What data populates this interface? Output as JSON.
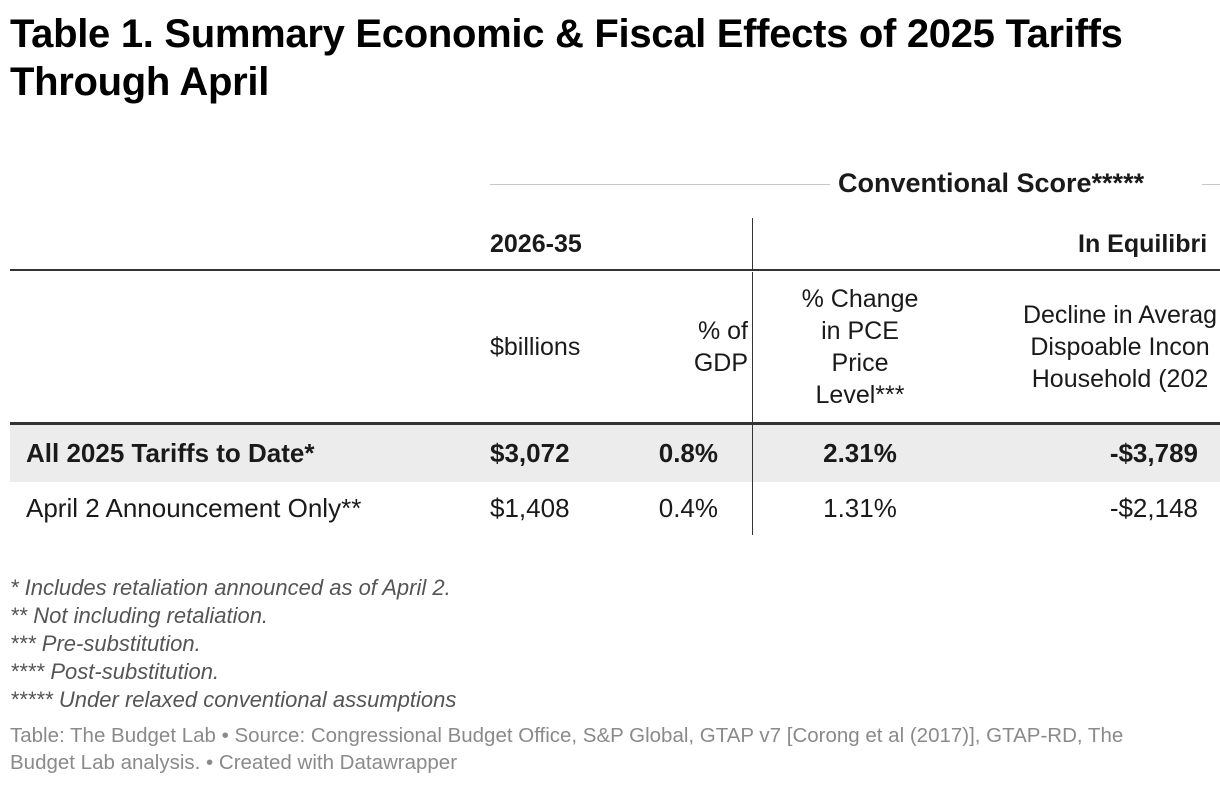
{
  "title": "Table 1. Summary Economic & Fiscal Effects of 2025 Tariffs Through April",
  "table": {
    "group_header": "Conventional Score*****",
    "col_groups": {
      "left": "2026-35",
      "right": "In Equilibri"
    },
    "subheaders": {
      "billions": "$billions",
      "gdp": "% of GDP",
      "pce": "% Change in PCE Price Level***",
      "decline": "Decline in Averag Dispoable Incon Household (202"
    },
    "rows": [
      {
        "label": "All 2025 Tariffs to Date*",
        "billions": "$3,072",
        "gdp": "0.8%",
        "pce": "2.31%",
        "decline": "-$3,789"
      },
      {
        "label": "April 2 Announcement Only**",
        "billions": "$1,408",
        "gdp": "0.4%",
        "pce": "1.31%",
        "decline": "-$2,148"
      }
    ]
  },
  "notes": [
    "* Includes retaliation announced as of April 2.",
    "** Not including retaliation.",
    "*** Pre-substitution.",
    "**** Post-substitution.",
    "***** Under relaxed conventional assumptions"
  ],
  "source": "Table: The Budget Lab • Source: Congressional Budget Office, S&P Global, GTAP v7 [Corong et al (2017)], GTAP-RD, The Budget Lab analysis. • Created with Datawrapper",
  "colors": {
    "text": "#1a1a1a",
    "highlight_row": "#ececec",
    "rule": "#333333",
    "notes": "#555555",
    "source": "#8a8a8a"
  }
}
